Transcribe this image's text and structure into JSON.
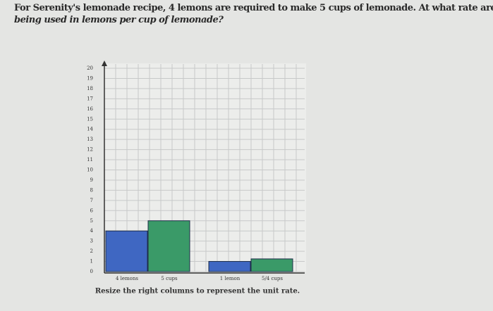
{
  "question": {
    "line1": "For Serenity's lemonade recipe, 4 lemons are required to make 5 cups of lemonade. At what rate are lemons",
    "line2": "being used in lemons per cup of lemonade?"
  },
  "instruction": "Resize the right columns to represent the unit rate.",
  "chart_data": {
    "type": "bar",
    "categories": [
      "4 lemons",
      "5 cups",
      "1 lemon",
      "5/4 cups"
    ],
    "values": [
      4,
      5,
      1,
      1.25
    ],
    "colors": [
      "#3f67c2",
      "#3a9a68",
      "#3f67c2",
      "#3a9a68"
    ],
    "ylim": [
      0,
      20
    ],
    "yticks": [
      0,
      1,
      2,
      3,
      4,
      5,
      6,
      7,
      8,
      9,
      10,
      11,
      12,
      13,
      14,
      15,
      16,
      17,
      18,
      19,
      20
    ],
    "grid": true
  }
}
